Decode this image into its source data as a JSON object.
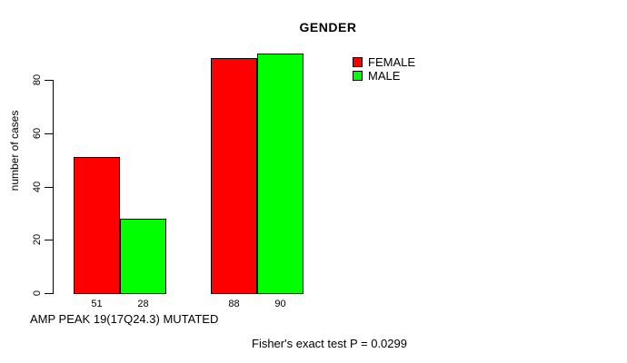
{
  "chart": {
    "title": "GENDER",
    "ylabel": "number of cases",
    "xlabel": "AMP PEAK 19(17Q24.3) MUTATED",
    "footer": "Fisher's exact test P = 0.0299"
  },
  "legend": {
    "items": [
      {
        "label": "FEMALE",
        "color": "#FF0000"
      },
      {
        "label": "MALE",
        "color": "#00FF00"
      }
    ]
  },
  "chart_data": {
    "type": "bar",
    "title": "GENDER",
    "xlabel": "AMP PEAK 19(17Q24.3) MUTATED",
    "ylabel": "number of cases",
    "series": [
      {
        "name": "FEMALE",
        "color": "#FF0000",
        "values": [
          51,
          88
        ]
      },
      {
        "name": "MALE",
        "color": "#00FF00",
        "values": [
          28,
          90
        ]
      }
    ],
    "x_tick_labels": [
      "51",
      "28",
      "88",
      "90"
    ],
    "yticks": [
      0,
      20,
      40,
      60,
      80
    ],
    "ylim": [
      0,
      90
    ],
    "axis_tick_max": 80,
    "bar_edge_color": "#000000",
    "legend": [
      "FEMALE",
      "MALE"
    ],
    "legend_position": "top-right",
    "grid": false,
    "annotation": "Fisher's exact test P = 0.0299"
  }
}
